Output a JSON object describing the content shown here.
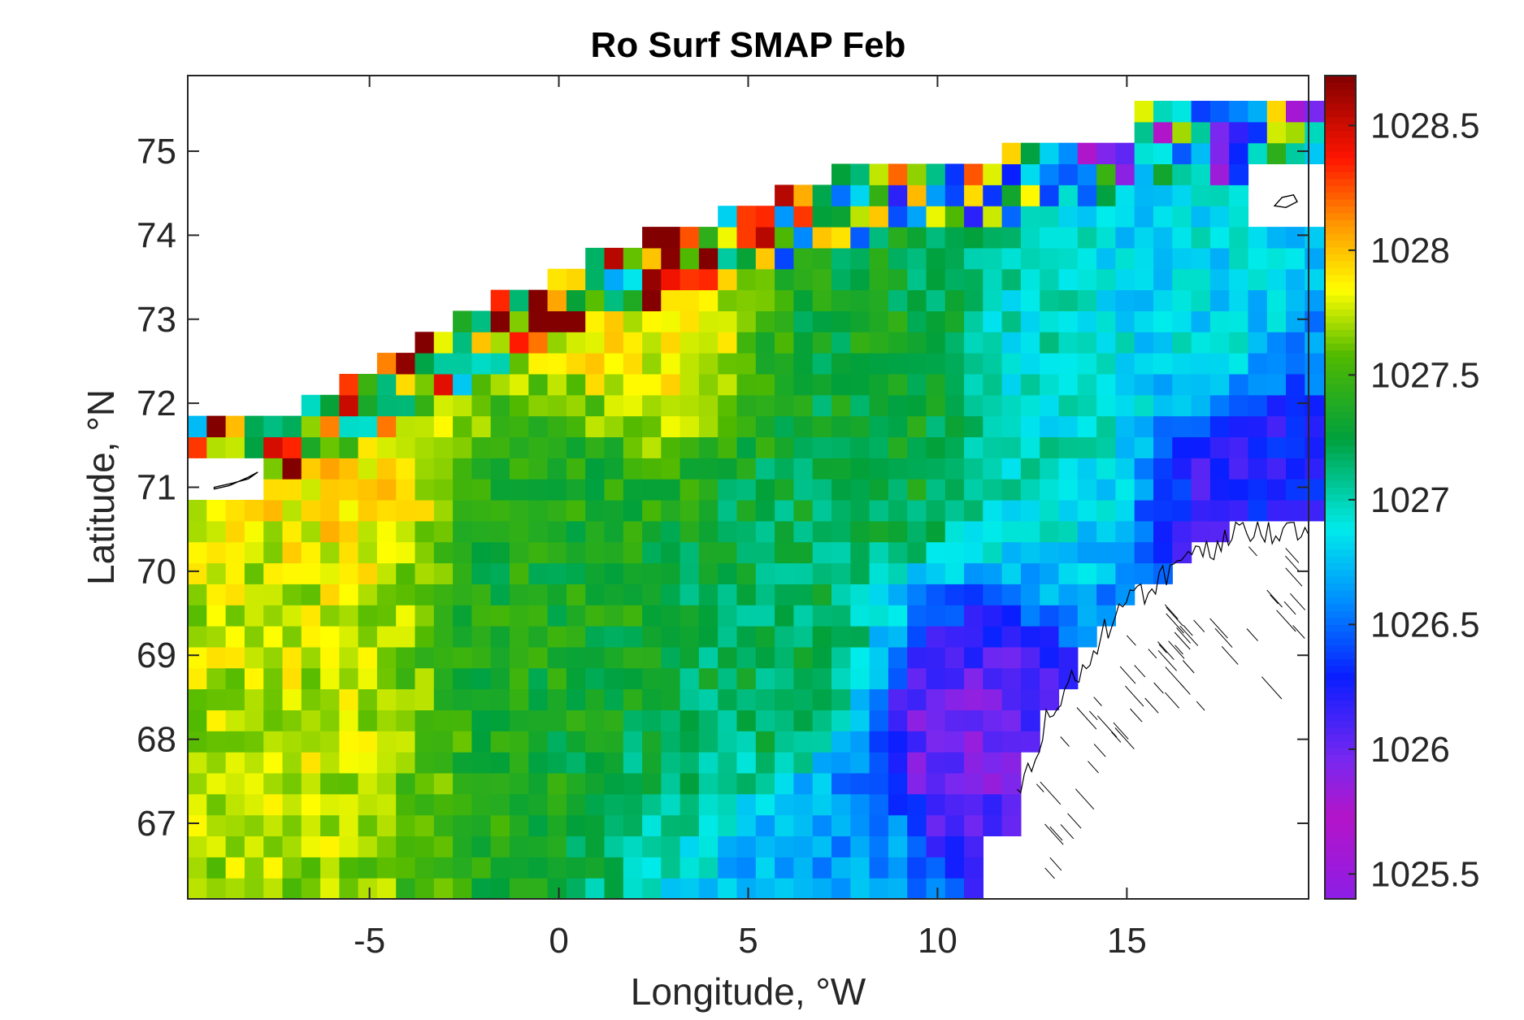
{
  "chart_data": {
    "type": "heatmap",
    "title": "Ro Surf SMAP Feb",
    "xlabel": "Longitude, °W",
    "ylabel": "Latitude, °N",
    "xlim": [
      -9.8,
      19.8
    ],
    "ylim": [
      66.1,
      75.9
    ],
    "x_ticks": [
      -5,
      0,
      5,
      10,
      15
    ],
    "x_tick_labels": [
      "-5",
      "0",
      "5",
      "10",
      "15"
    ],
    "y_ticks": [
      67,
      68,
      69,
      70,
      71,
      72,
      73,
      74,
      75
    ],
    "y_tick_labels": [
      "67",
      "68",
      "69",
      "70",
      "71",
      "72",
      "73",
      "74",
      "75"
    ],
    "colorbar": {
      "range": [
        1025.4,
        1028.7
      ],
      "ticks": [
        1025.5,
        1026,
        1026.5,
        1027,
        1027.5,
        1028,
        1028.5
      ],
      "tick_labels": [
        "1025.5",
        "1026",
        "1026.5",
        "1027",
        "1027.5",
        "1028",
        "1028.5"
      ],
      "colormap": "jet-like (purple-blue-cyan-green-yellow-red-darkred)"
    },
    "grid": false,
    "field_description_anchors": [
      {
        "lon": -8,
        "lat": 69,
        "value": 1027.75
      },
      {
        "lon": -6,
        "lat": 71.5,
        "value": 1027.9
      },
      {
        "lon": 0,
        "lat": 70,
        "value": 1027.35
      },
      {
        "lon": 2,
        "lat": 73.5,
        "value": 1027.85
      },
      {
        "lon": 6,
        "lat": 69,
        "value": 1027.2
      },
      {
        "lon": 9,
        "lat": 72,
        "value": 1027.3
      },
      {
        "lon": 13,
        "lat": 72,
        "value": 1026.95
      },
      {
        "lon": 17,
        "lat": 73,
        "value": 1026.85
      },
      {
        "lon": 18,
        "lat": 71,
        "value": 1026.2
      },
      {
        "lon": 10.5,
        "lat": 67.8,
        "value": 1026.0
      },
      {
        "lon": 8,
        "lat": 66.6,
        "value": 1026.6
      }
    ]
  }
}
